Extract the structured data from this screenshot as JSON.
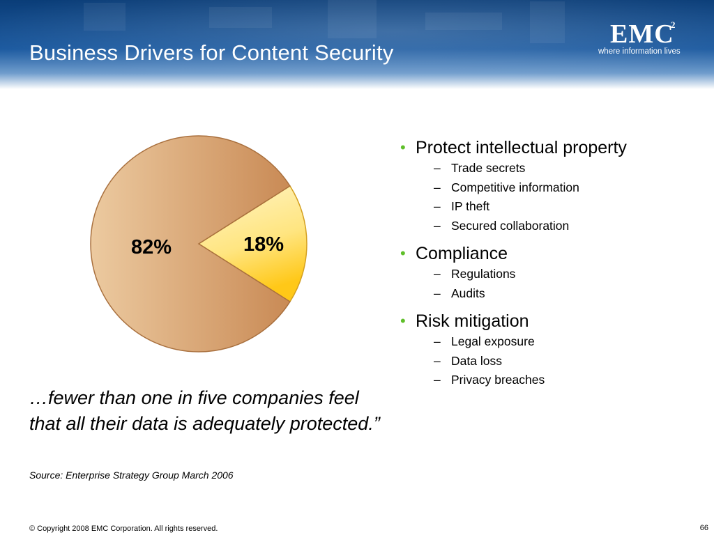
{
  "slide": {
    "title": "Business Drivers for Content Security"
  },
  "logo": {
    "name": "EMC",
    "superscript": "2",
    "tagline": "where information lives"
  },
  "chart_data": {
    "type": "pie",
    "title": "",
    "slices": [
      {
        "label": "82%",
        "value": 82,
        "color": "#cf9a6a"
      },
      {
        "label": "18%",
        "value": 18,
        "color": "#ffd84a"
      }
    ]
  },
  "bullets": [
    {
      "label": "Protect intellectual property",
      "subs": [
        "Trade secrets",
        "Competitive information",
        "IP theft",
        "Secured collaboration"
      ]
    },
    {
      "label": "Compliance",
      "subs": [
        "Regulations",
        "Audits"
      ]
    },
    {
      "label": "Risk mitigation",
      "subs": [
        "Legal exposure",
        "Data loss",
        "Privacy breaches"
      ]
    }
  ],
  "quote": "…fewer than one in five companies feel that all their data is adequately protected.”",
  "source": "Source: Enterprise Strategy Group March 2006",
  "footer": {
    "copyright": "© Copyright 2008 EMC Corporation. All rights reserved.",
    "page_number": "66"
  },
  "colors": {
    "header": "#1c5aa0",
    "bullet": "#5fbf2a"
  }
}
